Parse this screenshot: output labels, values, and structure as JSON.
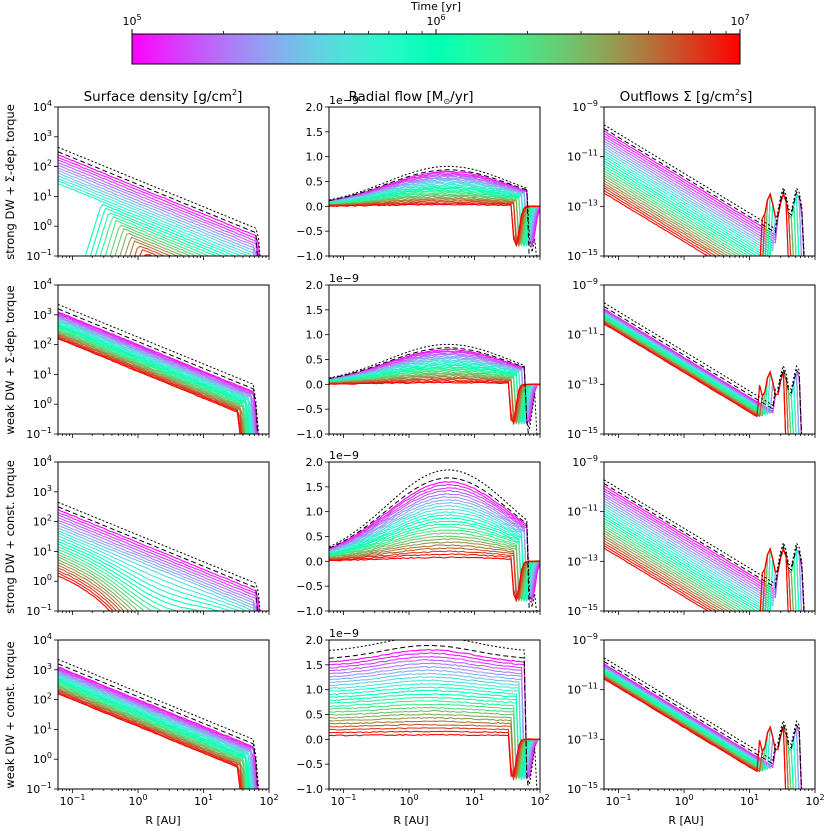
{
  "colorbar": {
    "title": "Time [yr]",
    "ticks": [
      {
        "base": "10",
        "exp": "5"
      },
      {
        "base": "10",
        "exp": "6"
      },
      {
        "base": "10",
        "exp": "7"
      }
    ],
    "range": [
      100000,
      10000000
    ],
    "scale": "log",
    "colormap": "rainbow"
  },
  "columns": [
    {
      "title_prefix": "Surface density [g/cm",
      "title_sup": "2",
      "title_suffix": "]"
    },
    {
      "title_prefix": "Radial flow [M",
      "title_sun": "⊙",
      "title_suffix": "/yr]"
    },
    {
      "title_prefix": "Outflows ",
      "title_sigma": "Σ",
      "title_mid": " [g/cm",
      "title_sup": "2",
      "title_suffix": "s]"
    }
  ],
  "rows": [
    {
      "label": "strong DW + Σ-dep. torque"
    },
    {
      "label": "weak DW + Σ-dep. torque"
    },
    {
      "label": "strong DW + const. torque"
    },
    {
      "label": "weak DW + const. torque"
    }
  ],
  "xlabel": "R [AU]",
  "xticks": [
    {
      "base": "10",
      "exp": "−1"
    },
    {
      "base": "10",
      "exp": "0"
    },
    {
      "base": "10",
      "exp": "1"
    },
    {
      "base": "10",
      "exp": "2"
    }
  ],
  "yticks_density": [
    {
      "base": "10",
      "exp": "−1"
    },
    {
      "base": "10",
      "exp": "0"
    },
    {
      "base": "10",
      "exp": "1"
    },
    {
      "base": "10",
      "exp": "2"
    },
    {
      "base": "10",
      "exp": "3"
    },
    {
      "base": "10",
      "exp": "4"
    }
  ],
  "yticks_flow": [
    "−1.0",
    "−0.5",
    "0.0",
    "0.5",
    "1.0",
    "1.5",
    "2.0"
  ],
  "flow_offset": "1e−9",
  "yticks_outflow": [
    {
      "base": "10",
      "exp": "−15"
    },
    {
      "base": "10",
      "exp": "−13"
    },
    {
      "base": "10",
      "exp": "−11"
    },
    {
      "base": "10",
      "exp": "−9"
    }
  ],
  "chart_data": {
    "type": "line",
    "layout": "4x3 grid",
    "x": {
      "label": "R [AU]",
      "scale": "log",
      "range": [
        0.06,
        100
      ]
    },
    "panels_y": [
      {
        "column": "Surface density [g/cm2]",
        "scale": "log",
        "range": [
          0.1,
          10000
        ]
      },
      {
        "column": "Radial flow [M⊙/yr]",
        "scale": "linear",
        "range": [
          -1.0,
          2.0
        ],
        "offset": "1e-9"
      },
      {
        "column": "Outflows Σ̇ [g/cm2s]",
        "scale": "log",
        "range": [
          1e-15,
          1e-09
        ]
      }
    ],
    "series_color_by": "Time [yr]",
    "time_range": [
      100000,
      10000000
    ],
    "reference_lines": [
      "dotted black",
      "dashed black"
    ],
    "grid": false
  }
}
